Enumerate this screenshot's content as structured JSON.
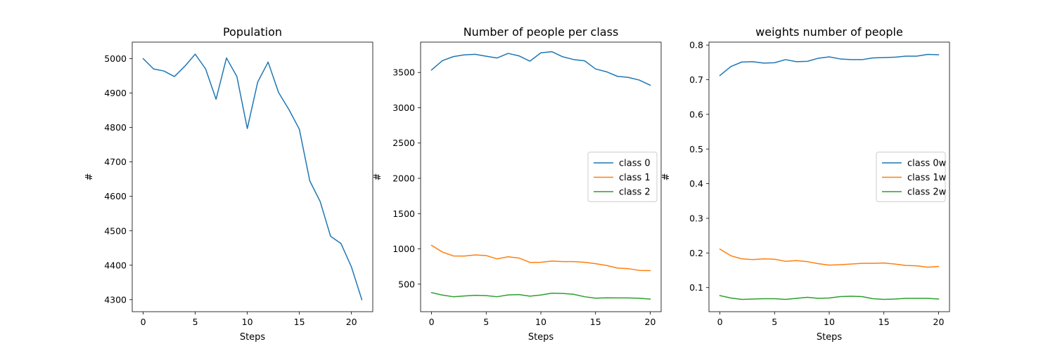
{
  "chart_data": [
    {
      "type": "line",
      "title": "Population",
      "xlabel": "Steps",
      "ylabel": "#",
      "xlim": [
        -1.05,
        22.05
      ],
      "ylim": [
        4265,
        5048
      ],
      "xticks": [
        0,
        5,
        10,
        15,
        20
      ],
      "yticks": [
        4300,
        4400,
        4500,
        4600,
        4700,
        4800,
        4900,
        5000
      ],
      "ytick_labels": [
        "4300",
        "4400",
        "4500",
        "4600",
        "4700",
        "4800",
        "4900",
        "5000"
      ],
      "legend": null,
      "series": [
        {
          "color": "#1f77b4",
          "x": [
            0,
            1,
            2,
            3,
            4,
            5,
            6,
            7,
            8,
            9,
            10,
            11,
            12,
            13,
            14,
            15,
            16,
            17,
            18,
            19,
            20,
            21
          ],
          "values": [
            5000,
            4970,
            4964,
            4948,
            4978,
            5013,
            4970,
            4882,
            5002,
            4948,
            4797,
            4932,
            4990,
            4902,
            4852,
            4795,
            4645,
            4585,
            4484,
            4463,
            4395,
            4300
          ]
        }
      ]
    },
    {
      "type": "line",
      "title": "Number of people per class",
      "xlabel": "Steps",
      "ylabel": "#",
      "xlim": [
        -1.0,
        21.0
      ],
      "ylim": [
        110,
        3930
      ],
      "xticks": [
        0,
        5,
        10,
        15,
        20
      ],
      "yticks": [
        500,
        1000,
        1500,
        2000,
        2500,
        3000,
        3500
      ],
      "ytick_labels": [
        "500",
        "1000",
        "1500",
        "2000",
        "2500",
        "3000",
        "3500"
      ],
      "legend": "center-right",
      "series": [
        {
          "name": "class 0",
          "color": "#1f77b4",
          "x": [
            0,
            1,
            2,
            3,
            4,
            5,
            6,
            7,
            8,
            9,
            10,
            11,
            12,
            13,
            14,
            15,
            16,
            17,
            18,
            19,
            20
          ],
          "values": [
            3535,
            3668,
            3725,
            3750,
            3757,
            3730,
            3705,
            3770,
            3735,
            3660,
            3778,
            3795,
            3722,
            3683,
            3665,
            3550,
            3510,
            3445,
            3430,
            3392,
            3320
          ]
        },
        {
          "name": "class 1",
          "color": "#ff7f0e",
          "x": [
            0,
            1,
            2,
            3,
            4,
            5,
            6,
            7,
            8,
            9,
            10,
            11,
            12,
            13,
            14,
            15,
            16,
            17,
            18,
            19,
            20
          ],
          "values": [
            1050,
            955,
            900,
            898,
            915,
            905,
            858,
            888,
            870,
            808,
            810,
            828,
            820,
            820,
            810,
            790,
            765,
            728,
            720,
            695,
            692
          ]
        },
        {
          "name": "class 2",
          "color": "#2ca02c",
          "x": [
            0,
            1,
            2,
            3,
            4,
            5,
            6,
            7,
            8,
            9,
            10,
            11,
            12,
            13,
            14,
            15,
            16,
            17,
            18,
            19,
            20
          ],
          "values": [
            380,
            345,
            322,
            332,
            342,
            338,
            322,
            348,
            352,
            330,
            346,
            372,
            368,
            356,
            322,
            302,
            306,
            305,
            305,
            300,
            288
          ]
        }
      ]
    },
    {
      "type": "line",
      "title": "weights number of people",
      "xlabel": "Steps",
      "ylabel": "#",
      "xlim": [
        -1.0,
        21.0
      ],
      "ylim": [
        0.0305,
        0.8085
      ],
      "xticks": [
        0,
        5,
        10,
        15,
        20
      ],
      "yticks": [
        0.1,
        0.2,
        0.3,
        0.4,
        0.5,
        0.6,
        0.7,
        0.8
      ],
      "ytick_labels": [
        "0.1",
        "0.2",
        "0.3",
        "0.4",
        "0.5",
        "0.6",
        "0.7",
        "0.8"
      ],
      "legend": "center-right",
      "series": [
        {
          "name": "class 0w",
          "color": "#1f77b4",
          "x": [
            0,
            1,
            2,
            3,
            4,
            5,
            6,
            7,
            8,
            9,
            10,
            11,
            12,
            13,
            14,
            15,
            16,
            17,
            18,
            19,
            20
          ],
          "values": [
            0.712,
            0.738,
            0.751,
            0.752,
            0.748,
            0.749,
            0.758,
            0.752,
            0.753,
            0.762,
            0.766,
            0.76,
            0.758,
            0.758,
            0.763,
            0.764,
            0.765,
            0.768,
            0.768,
            0.773,
            0.772
          ]
        },
        {
          "name": "class 1w",
          "color": "#ff7f0e",
          "x": [
            0,
            1,
            2,
            3,
            4,
            5,
            6,
            7,
            8,
            9,
            10,
            11,
            12,
            13,
            14,
            15,
            16,
            17,
            18,
            19,
            20
          ],
          "values": [
            0.211,
            0.192,
            0.183,
            0.181,
            0.183,
            0.182,
            0.176,
            0.178,
            0.175,
            0.169,
            0.165,
            0.166,
            0.168,
            0.17,
            0.17,
            0.171,
            0.168,
            0.164,
            0.163,
            0.159,
            0.161
          ]
        },
        {
          "name": "class 2w",
          "color": "#2ca02c",
          "x": [
            0,
            1,
            2,
            3,
            4,
            5,
            6,
            7,
            8,
            9,
            10,
            11,
            12,
            13,
            14,
            15,
            16,
            17,
            18,
            19,
            20
          ],
          "values": [
            0.077,
            0.07,
            0.066,
            0.067,
            0.068,
            0.068,
            0.066,
            0.069,
            0.072,
            0.069,
            0.07,
            0.074,
            0.075,
            0.074,
            0.068,
            0.066,
            0.067,
            0.069,
            0.069,
            0.069,
            0.067
          ]
        }
      ]
    }
  ]
}
